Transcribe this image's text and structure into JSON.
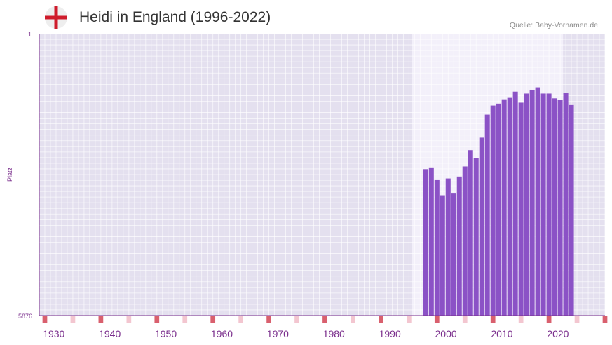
{
  "header": {
    "title": "Heidi in England (1996-2022)",
    "source": "Quelle: Baby-Vornamen.de",
    "flag": "england-flag-icon"
  },
  "colors": {
    "bar": "#8b52c6",
    "plot_bg": "#e4e0ef",
    "highlight_bg": "#f3f0fa",
    "grid": "#ffffff",
    "axis": "#7a2e8c",
    "tick_label": "#7a2e8c",
    "marker_strong": "#d9606e",
    "marker_light": "#f3c6d0",
    "flag_red": "#cf1b2b"
  },
  "chart_data": {
    "type": "bar",
    "title": "Heidi in England (1996-2022)",
    "xlabel": "",
    "ylabel": "Platz",
    "y_reversed": true,
    "ylim": [
      1,
      5876
    ],
    "y_tick_labels": [
      "1",
      "5876"
    ],
    "xlim": [
      1927,
      2028
    ],
    "x_tick_labels": [
      "1930",
      "1940",
      "1950",
      "1960",
      "1970",
      "1980",
      "1990",
      "2000",
      "2010",
      "2020"
    ],
    "highlight_range": [
      1993.5,
      2020.5
    ],
    "grid": true,
    "x": [
      1996,
      1997,
      1998,
      1999,
      2000,
      2001,
      2002,
      2003,
      2004,
      2005,
      2006,
      2007,
      2008,
      2009,
      2010,
      2011,
      2012,
      2013,
      2014,
      2015,
      2016,
      2017,
      2018,
      2019,
      2020,
      2021,
      2022
    ],
    "values": [
      2826,
      2790,
      3040,
      3370,
      3020,
      3320,
      2980,
      2770,
      2430,
      2590,
      2170,
      1690,
      1500,
      1460,
      1370,
      1340,
      1210,
      1440,
      1250,
      1170,
      1120,
      1250,
      1250,
      1350,
      1380,
      1230,
      1490
    ],
    "decade_markers_strong": [
      1928,
      1938,
      1948,
      1958,
      1968,
      1978,
      1988,
      1998,
      2008,
      2018,
      2028
    ],
    "decade_markers_light": [
      1933,
      1943,
      1953,
      1963,
      1973,
      1983,
      1993,
      2003,
      2013,
      2023
    ]
  }
}
